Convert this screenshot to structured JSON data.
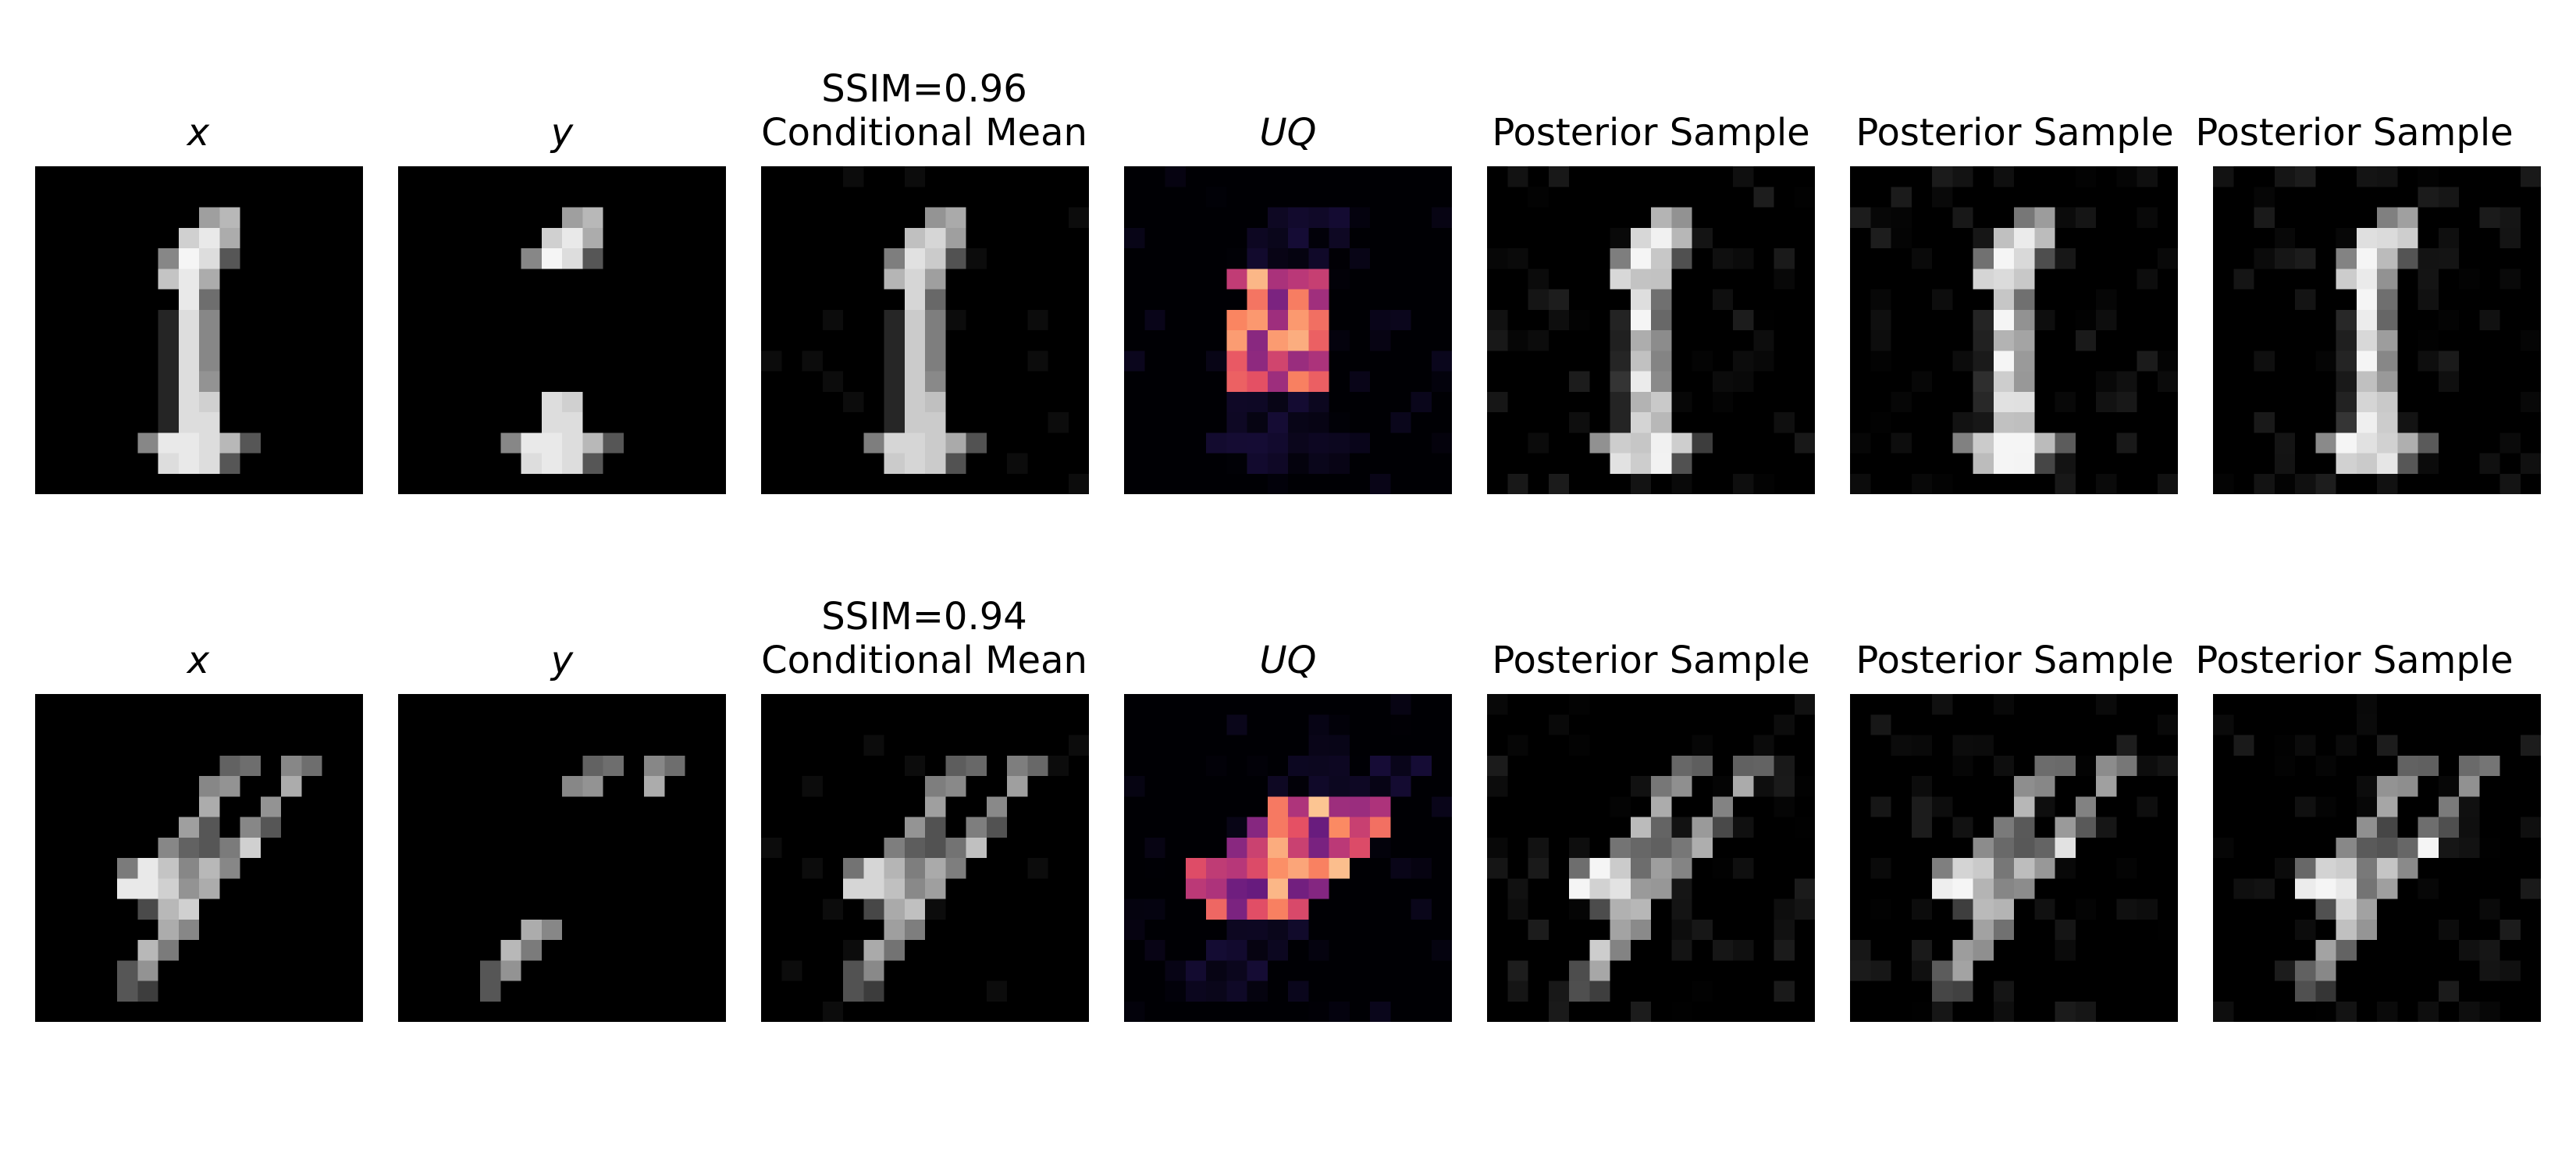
{
  "figure": {
    "rows": [
      {
        "ssim_label": "SSIM=0.96",
        "panels": [
          {
            "kind": "x",
            "title": "x",
            "colormap": "gray",
            "digit": "1",
            "variant": "truth"
          },
          {
            "kind": "y",
            "title": "y",
            "colormap": "gray",
            "digit": "1",
            "variant": "masked"
          },
          {
            "kind": "mean",
            "title": "Conditional Mean",
            "colormap": "gray",
            "digit": "1",
            "variant": "mean"
          },
          {
            "kind": "uq",
            "title": "UQ",
            "colormap": "magma",
            "digit": "1",
            "variant": "uq"
          },
          {
            "kind": "sample",
            "title": "Posterior Sample",
            "colormap": "gray",
            "digit": "1",
            "variant": "sampleA"
          },
          {
            "kind": "sample",
            "title": "Posterior Sample",
            "colormap": "gray",
            "digit": "1",
            "variant": "sampleB"
          },
          {
            "kind": "sample",
            "title": "Posterior Sample",
            "colormap": "gray",
            "digit": "1",
            "variant": "sampleC"
          }
        ]
      },
      {
        "ssim_label": "SSIM=0.94",
        "panels": [
          {
            "kind": "x",
            "title": "x",
            "colormap": "gray",
            "digit": "4",
            "variant": "truth"
          },
          {
            "kind": "y",
            "title": "y",
            "colormap": "gray",
            "digit": "4",
            "variant": "masked"
          },
          {
            "kind": "mean",
            "title": "Conditional Mean",
            "colormap": "gray",
            "digit": "4",
            "variant": "mean"
          },
          {
            "kind": "uq",
            "title": "UQ",
            "colormap": "magma",
            "digit": "4",
            "variant": "uq"
          },
          {
            "kind": "sample",
            "title": "Posterior Sample",
            "colormap": "gray",
            "digit": "4",
            "variant": "sampleA"
          },
          {
            "kind": "sample",
            "title": "Posterior Sample",
            "colormap": "gray",
            "digit": "4",
            "variant": "sampleB"
          },
          {
            "kind": "sample",
            "title": "Posterior Sample",
            "colormap": "gray",
            "digit": "4",
            "variant": "sampleC"
          }
        ]
      }
    ]
  }
}
